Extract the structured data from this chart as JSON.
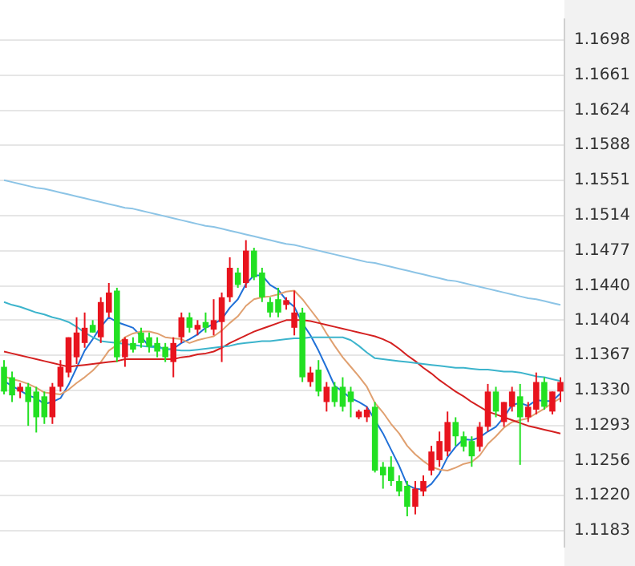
{
  "chart_data": {
    "type": "candlestick",
    "categories": [
      null,
      null,
      null,
      null,
      null,
      null,
      null,
      null,
      null,
      null,
      null,
      null,
      null,
      null,
      null,
      null,
      null,
      null,
      null,
      null,
      null,
      null,
      null,
      null,
      null,
      null,
      null,
      null,
      null,
      null,
      null,
      null,
      null,
      null,
      null,
      null,
      null,
      null,
      null,
      null,
      null,
      null,
      null,
      null,
      null,
      null,
      null,
      null,
      null,
      null,
      null,
      null,
      null,
      null,
      null,
      null,
      null,
      null,
      null,
      null,
      null,
      null,
      null,
      null,
      null,
      null,
      null,
      null,
      null,
      null
    ],
    "ohlc": [
      [
        1.1355,
        1.1362,
        1.1326,
        1.1329
      ],
      [
        1.1344,
        1.135,
        1.1318,
        1.1325
      ],
      [
        1.1329,
        1.1338,
        1.1322,
        1.1334
      ],
      [
        1.1334,
        1.1338,
        1.1293,
        1.1318
      ],
      [
        1.1329,
        1.1334,
        1.1286,
        1.1302
      ],
      [
        1.1324,
        1.1329,
        1.1295,
        1.1302
      ],
      [
        1.1302,
        1.1338,
        1.1295,
        1.1334
      ],
      [
        1.1334,
        1.1362,
        1.1329,
        1.1355
      ],
      [
        1.1349,
        1.1386,
        1.1344,
        1.1386
      ],
      [
        1.1365,
        1.1407,
        1.1358,
        1.1391
      ],
      [
        1.138,
        1.1412,
        1.1375,
        1.1396
      ],
      [
        1.1399,
        1.1404,
        1.1391,
        1.1391
      ],
      [
        1.1386,
        1.1428,
        1.138,
        1.1423
      ],
      [
        1.1412,
        1.1443,
        1.1407,
        1.1433
      ],
      [
        1.1435,
        1.1438,
        1.136,
        1.1365
      ],
      [
        1.1365,
        1.1386,
        1.1355,
        1.1384
      ],
      [
        1.138,
        1.1386,
        1.137,
        1.1373
      ],
      [
        1.1391,
        1.1396,
        1.1375,
        1.138
      ],
      [
        1.1386,
        1.1391,
        1.137,
        1.1376
      ],
      [
        1.138,
        1.1386,
        1.1365,
        1.1371
      ],
      [
        1.1376,
        1.138,
        1.136,
        1.1365
      ],
      [
        1.136,
        1.1386,
        1.1344,
        1.138
      ],
      [
        1.1386,
        1.1412,
        1.138,
        1.1407
      ],
      [
        1.1407,
        1.1412,
        1.1391,
        1.1396
      ],
      [
        1.1394,
        1.1404,
        1.1388,
        1.1399
      ],
      [
        1.1402,
        1.1412,
        1.1391,
        1.1396
      ],
      [
        1.1394,
        1.1426,
        1.1388,
        1.1404
      ],
      [
        1.1402,
        1.1433,
        1.136,
        1.1428
      ],
      [
        1.1428,
        1.147,
        1.1423,
        1.1459
      ],
      [
        1.1454,
        1.1459,
        1.1438,
        1.1441
      ],
      [
        1.1443,
        1.1488,
        1.1438,
        1.1477
      ],
      [
        1.1477,
        1.148,
        1.1446,
        1.1449
      ],
      [
        1.1454,
        1.1459,
        1.1423,
        1.1428
      ],
      [
        1.1423,
        1.1428,
        1.1407,
        1.1412
      ],
      [
        1.1426,
        1.1438,
        1.1407,
        1.1412
      ],
      [
        1.142,
        1.1428,
        1.1415,
        1.1425
      ],
      [
        1.1396,
        1.1435,
        1.1388,
        1.1412
      ],
      [
        1.1412,
        1.1417,
        1.1339,
        1.1344
      ],
      [
        1.1339,
        1.1355,
        1.1334,
        1.1349
      ],
      [
        1.1352,
        1.1362,
        1.1324,
        1.1329
      ],
      [
        1.1318,
        1.1339,
        1.1308,
        1.1334
      ],
      [
        1.1334,
        1.1339,
        1.1313,
        1.1318
      ],
      [
        1.1334,
        1.1344,
        1.1308,
        1.1313
      ],
      [
        1.1329,
        1.1334,
        1.1302,
        1.1318
      ],
      [
        1.1302,
        1.131,
        1.13,
        1.1308
      ],
      [
        1.1302,
        1.1313,
        1.1297,
        1.131
      ],
      [
        1.1313,
        1.1318,
        1.1244,
        1.1246
      ],
      [
        1.125,
        1.1255,
        1.1227,
        1.1241
      ],
      [
        1.125,
        1.1261,
        1.123,
        1.1235
      ],
      [
        1.1235,
        1.1241,
        1.1219,
        1.1224
      ],
      [
        1.123,
        1.1235,
        1.1198,
        1.1208
      ],
      [
        1.1208,
        1.1235,
        1.12,
        1.1227
      ],
      [
        1.1224,
        1.1241,
        1.1219,
        1.1235
      ],
      [
        1.1246,
        1.1272,
        1.1241,
        1.1266
      ],
      [
        1.1257,
        1.1287,
        1.125,
        1.1277
      ],
      [
        1.1266,
        1.1308,
        1.1261,
        1.1297
      ],
      [
        1.1297,
        1.1302,
        1.1272,
        1.1282
      ],
      [
        1.1282,
        1.1287,
        1.1266,
        1.1271
      ],
      [
        1.1277,
        1.1282,
        1.125,
        1.1261
      ],
      [
        1.1271,
        1.1297,
        1.1266,
        1.1292
      ],
      [
        1.1292,
        1.1337,
        1.1287,
        1.1329
      ],
      [
        1.1329,
        1.1334,
        1.1302,
        1.1308
      ],
      [
        1.1297,
        1.1318,
        1.1292,
        1.1318
      ],
      [
        1.1313,
        1.1334,
        1.1308,
        1.1329
      ],
      [
        1.1324,
        1.1337,
        1.1252,
        1.1302
      ],
      [
        1.1302,
        1.1318,
        1.1297,
        1.1313
      ],
      [
        1.131,
        1.1349,
        1.1305,
        1.1339
      ],
      [
        1.1339,
        1.1344,
        1.131,
        1.1313
      ],
      [
        1.1308,
        1.1329,
        1.1305,
        1.1329
      ],
      [
        1.1329,
        1.1344,
        1.1318,
        1.1339
      ]
    ],
    "colors": [
      "#22e022",
      "#22e022",
      "#e8141e",
      "#22e022",
      "#22e022",
      "#22e022",
      "#e8141e",
      "#e8141e",
      "#e8141e",
      "#e8141e",
      "#e8141e",
      "#22e022",
      "#e8141e",
      "#e8141e",
      "#22e022",
      "#e8141e",
      "#22e022",
      "#22e022",
      "#22e022",
      "#22e022",
      "#22e022",
      "#e8141e",
      "#e8141e",
      "#22e022",
      "#e8141e",
      "#22e022",
      "#e8141e",
      "#e8141e",
      "#e8141e",
      "#22e022",
      "#e8141e",
      "#22e022",
      "#22e022",
      "#22e022",
      "#22e022",
      "#e8141e",
      "#e8141e",
      "#22e022",
      "#e8141e",
      "#22e022",
      "#e8141e",
      "#22e022",
      "#22e022",
      "#22e022",
      "#e8141e",
      "#e8141e",
      "#22e022",
      "#22e022",
      "#22e022",
      "#22e022",
      "#22e022",
      "#e8141e",
      "#e8141e",
      "#e8141e",
      "#e8141e",
      "#e8141e",
      "#22e022",
      "#22e022",
      "#22e022",
      "#e8141e",
      "#e8141e",
      "#22e022",
      "#e8141e",
      "#e8141e",
      "#22e022",
      "#e8141e",
      "#e8141e",
      "#22e022",
      "#e8141e",
      "#e8141e"
    ],
    "series": [
      {
        "type": "line",
        "color": "#8cc4e6",
        "values": [
          1.1551,
          1.1549,
          1.1547,
          1.1545,
          1.1543,
          1.1542,
          1.154,
          1.1538,
          1.1536,
          1.1534,
          1.1532,
          1.153,
          1.1528,
          1.1526,
          1.1524,
          1.1522,
          1.1521,
          1.1519,
          1.1517,
          1.1515,
          1.1513,
          1.1511,
          1.1509,
          1.1507,
          1.1505,
          1.1503,
          1.1502,
          1.15,
          1.1498,
          1.1496,
          1.1494,
          1.1492,
          1.149,
          1.1488,
          1.1486,
          1.1484,
          1.1483,
          1.1481,
          1.1479,
          1.1477,
          1.1475,
          1.1473,
          1.1471,
          1.1469,
          1.1467,
          1.1465,
          1.1464,
          1.1462,
          1.146,
          1.1458,
          1.1456,
          1.1454,
          1.1452,
          1.145,
          1.1448,
          1.1446,
          1.1445,
          1.1443,
          1.1441,
          1.1439,
          1.1437,
          1.1435,
          1.1433,
          1.1431,
          1.1429,
          1.1427,
          1.1426,
          1.1424,
          1.1422,
          1.142
        ]
      },
      {
        "type": "line",
        "color": "#3cb4cc",
        "values": [
          1.1423,
          1.142,
          1.1418,
          1.1415,
          1.1412,
          1.141,
          1.1407,
          1.1405,
          1.1402,
          1.1397,
          1.1391,
          1.1386,
          1.1382,
          1.1381,
          1.138,
          1.1379,
          1.1378,
          1.1377,
          1.1376,
          1.1375,
          1.1374,
          1.1373,
          1.1372,
          1.1372,
          1.1373,
          1.1374,
          1.1375,
          1.1376,
          1.1377,
          1.1379,
          1.138,
          1.1381,
          1.1382,
          1.1382,
          1.1383,
          1.1384,
          1.1385,
          1.1385,
          1.1386,
          1.1386,
          1.1386,
          1.1386,
          1.1386,
          1.1383,
          1.1377,
          1.137,
          1.1364,
          1.1363,
          1.1362,
          1.1361,
          1.136,
          1.1359,
          1.1358,
          1.1357,
          1.1356,
          1.1355,
          1.1354,
          1.1354,
          1.1353,
          1.1352,
          1.1352,
          1.1351,
          1.135,
          1.135,
          1.1349,
          1.1347,
          1.1345,
          1.1344,
          1.1342,
          1.134
        ]
      },
      {
        "type": "line",
        "color": "#d42020",
        "values": [
          1.1371,
          1.1369,
          1.1367,
          1.1365,
          1.1363,
          1.1361,
          1.1359,
          1.1357,
          1.1355,
          1.1356,
          1.1357,
          1.1358,
          1.1359,
          1.136,
          1.1361,
          1.1363,
          1.1363,
          1.1363,
          1.1363,
          1.1363,
          1.1363,
          1.1363,
          1.1365,
          1.1366,
          1.1368,
          1.1369,
          1.1371,
          1.1375,
          1.138,
          1.1384,
          1.1388,
          1.1392,
          1.1395,
          1.1398,
          1.1401,
          1.1404,
          1.1404,
          1.1404,
          1.1403,
          1.1401,
          1.1399,
          1.1397,
          1.1395,
          1.1393,
          1.1391,
          1.1389,
          1.1387,
          1.1384,
          1.138,
          1.1374,
          1.1367,
          1.1361,
          1.1354,
          1.1348,
          1.1341,
          1.1335,
          1.1329,
          1.1324,
          1.1318,
          1.1313,
          1.1308,
          1.1305,
          1.1302,
          1.1299,
          1.1296,
          1.1293,
          1.1291,
          1.1289,
          1.1287,
          1.1285
        ]
      },
      {
        "type": "line",
        "color": "#e0a070",
        "values": [
          1.1345,
          1.1342,
          1.134,
          1.1337,
          1.1333,
          1.1328,
          1.1327,
          1.1326,
          1.1331,
          1.1338,
          1.1344,
          1.1351,
          1.136,
          1.1372,
          1.1378,
          1.1386,
          1.139,
          1.1392,
          1.1392,
          1.139,
          1.1386,
          1.1385,
          1.1384,
          1.138,
          1.1383,
          1.1385,
          1.1387,
          1.1393,
          1.1401,
          1.1408,
          1.1419,
          1.1426,
          1.1428,
          1.1429,
          1.1431,
          1.1434,
          1.1435,
          1.1426,
          1.1415,
          1.1404,
          1.139,
          1.1377,
          1.1365,
          1.1355,
          1.1345,
          1.1334,
          1.1317,
          1.1307,
          1.1295,
          1.1285,
          1.1272,
          1.1263,
          1.1256,
          1.125,
          1.1247,
          1.1246,
          1.1249,
          1.1253,
          1.1255,
          1.1262,
          1.1274,
          1.1282,
          1.1291,
          1.1297,
          1.1299,
          1.1301,
          1.1306,
          1.1311,
          1.1317,
          1.1322
        ]
      },
      {
        "type": "line",
        "color": "#2070d8",
        "values": [
          1.134,
          1.1335,
          1.133,
          1.1325,
          1.1322,
          1.1316,
          1.1318,
          1.1322,
          1.1336,
          1.1354,
          1.1372,
          1.1384,
          1.1397,
          1.1407,
          1.1402,
          1.1399,
          1.1396,
          1.1387,
          1.1376,
          1.1377,
          1.1373,
          1.1374,
          1.138,
          1.1384,
          1.1389,
          1.1396,
          1.14,
          1.1405,
          1.1417,
          1.1426,
          1.1442,
          1.1451,
          1.1451,
          1.1441,
          1.1436,
          1.1425,
          1.1418,
          1.1401,
          1.1388,
          1.1372,
          1.1354,
          1.1335,
          1.1329,
          1.1322,
          1.1318,
          1.1313,
          1.1299,
          1.1285,
          1.1268,
          1.1251,
          1.1231,
          1.1227,
          1.1226,
          1.1232,
          1.1243,
          1.126,
          1.1271,
          1.1279,
          1.1278,
          1.1281,
          1.1287,
          1.1292,
          1.1302,
          1.1315,
          1.1317,
          1.1314,
          1.132,
          1.1319,
          1.1319,
          1.1327
        ]
      }
    ],
    "ylim": [
      1.1166,
      1.172
    ],
    "yticks": [
      {
        "value": 1.1698,
        "label": "1.1698"
      },
      {
        "value": 1.1661,
        "label": "1.1661"
      },
      {
        "value": 1.1624,
        "label": "1.1624"
      },
      {
        "value": 1.1588,
        "label": "1.1588"
      },
      {
        "value": 1.1551,
        "label": "1.1551"
      },
      {
        "value": 1.1514,
        "label": "1.1514"
      },
      {
        "value": 1.1477,
        "label": "1.1477"
      },
      {
        "value": 1.144,
        "label": "1.1440"
      },
      {
        "value": 1.1404,
        "label": "1.1404"
      },
      {
        "value": 1.1367,
        "label": "1.1367"
      },
      {
        "value": 1.133,
        "label": "1.1330"
      },
      {
        "value": 1.1293,
        "label": "1.1293"
      },
      {
        "value": 1.1256,
        "label": "1.1256"
      },
      {
        "value": 1.122,
        "label": "1.1220"
      },
      {
        "value": 1.1183,
        "label": "1.1183"
      }
    ],
    "grid": "y",
    "tick_labels": "y"
  }
}
